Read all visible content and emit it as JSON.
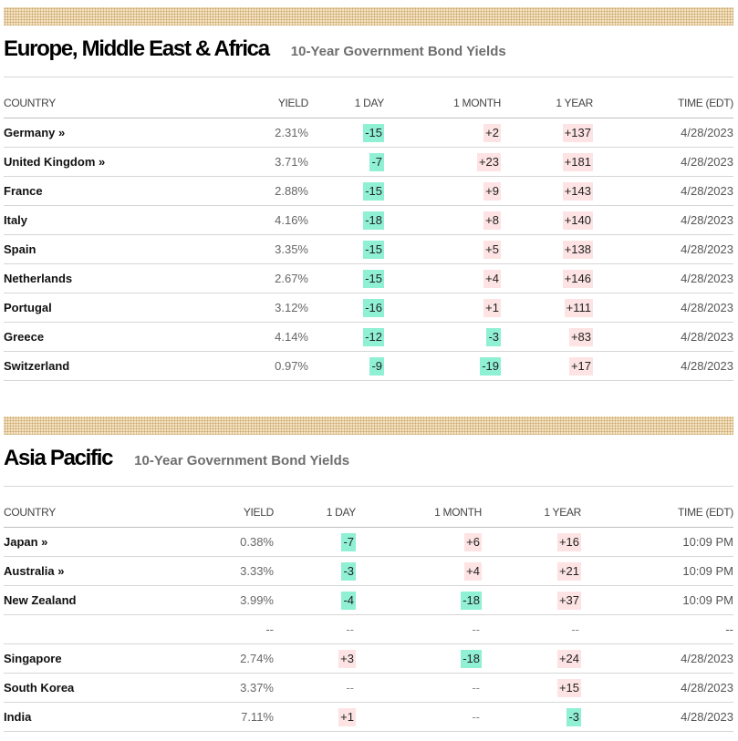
{
  "emea": {
    "title": "Europe, Middle East & Africa",
    "subtitle": "10-Year Government Bond Yields",
    "columns": [
      "COUNTRY",
      "YIELD",
      "1 DAY",
      "1 MONTH",
      "1 YEAR",
      "TIME (EDT)"
    ],
    "rows": [
      {
        "country": "Germany »",
        "yield": "2.31%",
        "day": "-15",
        "month": "+2",
        "year": "+137",
        "time": "4/28/2023"
      },
      {
        "country": "United Kingdom »",
        "yield": "3.71%",
        "day": "-7",
        "month": "+23",
        "year": "+181",
        "time": "4/28/2023"
      },
      {
        "country": "France",
        "yield": "2.88%",
        "day": "-15",
        "month": "+9",
        "year": "+143",
        "time": "4/28/2023"
      },
      {
        "country": "Italy",
        "yield": "4.16%",
        "day": "-18",
        "month": "+8",
        "year": "+140",
        "time": "4/28/2023"
      },
      {
        "country": "Spain",
        "yield": "3.35%",
        "day": "-15",
        "month": "+5",
        "year": "+138",
        "time": "4/28/2023"
      },
      {
        "country": "Netherlands",
        "yield": "2.67%",
        "day": "-15",
        "month": "+4",
        "year": "+146",
        "time": "4/28/2023"
      },
      {
        "country": "Portugal",
        "yield": "3.12%",
        "day": "-16",
        "month": "+1",
        "year": "+111",
        "time": "4/28/2023"
      },
      {
        "country": "Greece",
        "yield": "4.14%",
        "day": "-12",
        "month": "-3",
        "year": "+83",
        "time": "4/28/2023"
      },
      {
        "country": "Switzerland",
        "yield": "0.97%",
        "day": "-9",
        "month": "-19",
        "year": "+17",
        "time": "4/28/2023"
      }
    ]
  },
  "apac": {
    "title": "Asia Pacific",
    "subtitle": "10-Year Government Bond Yields",
    "columns": [
      "COUNTRY",
      "YIELD",
      "1 DAY",
      "1 MONTH",
      "1 YEAR",
      "TIME (EDT)"
    ],
    "rows": [
      {
        "country": "Japan »",
        "yield": "0.38%",
        "day": "-7",
        "month": "+6",
        "year": "+16",
        "time": "10:09 PM"
      },
      {
        "country": "Australia »",
        "yield": "3.33%",
        "day": "-3",
        "month": "+4",
        "year": "+21",
        "time": "10:09 PM"
      },
      {
        "country": "New Zealand",
        "yield": "3.99%",
        "day": "-4",
        "month": "-18",
        "year": "+37",
        "time": "10:09 PM"
      },
      {
        "country": "",
        "yield": "--",
        "day": "--",
        "month": "--",
        "year": "--",
        "time": "--"
      },
      {
        "country": "Singapore",
        "yield": "2.74%",
        "day": "+3",
        "month": "-18",
        "year": "+24",
        "time": "4/28/2023"
      },
      {
        "country": "South Korea",
        "yield": "3.37%",
        "day": "--",
        "month": "--",
        "year": "+15",
        "time": "4/28/2023"
      },
      {
        "country": "India",
        "yield": "7.11%",
        "day": "+1",
        "month": "--",
        "year": "-3",
        "time": "4/28/2023"
      }
    ]
  },
  "colors": {
    "negative_bg": "#8ff0d4",
    "positive_bg": "#fde3e3",
    "band": "#f4e4c4"
  }
}
